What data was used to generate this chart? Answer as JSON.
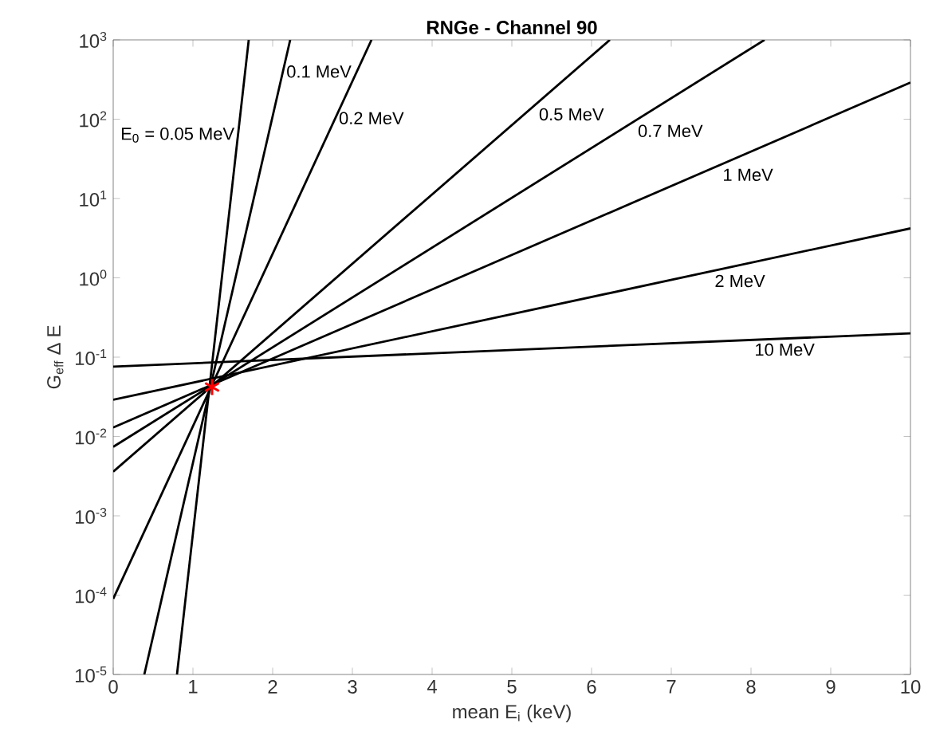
{
  "chart_data": {
    "type": "line",
    "title": "RNGe - Channel 90",
    "xlabel": "mean E$_{i}$ (keV)",
    "ylabel": "G$_{eff}$ ∆ E",
    "log": "y",
    "grid": false,
    "legend": false,
    "line_style": "solid",
    "marker": "none",
    "xlim": [
      0,
      10
    ],
    "ylim": [
      1e-05,
      1000
    ],
    "xticks": [
      0,
      1,
      2,
      3,
      4,
      5,
      6,
      7,
      8,
      9,
      10
    ],
    "yticks": [
      {
        "value": 1e-05,
        "label": "10$^{-5}$"
      },
      {
        "value": 0.0001,
        "label": "10$^{-4}$"
      },
      {
        "value": 0.001,
        "label": "10$^{-3}$"
      },
      {
        "value": 0.01,
        "label": "10$^{-2}$"
      },
      {
        "value": 0.1,
        "label": "10$^{-1}$"
      },
      {
        "value": 1,
        "label": "10$^{0}$"
      },
      {
        "value": 10,
        "label": "10$^{1}$"
      },
      {
        "value": 100,
        "label": "10$^{2}$"
      },
      {
        "value": 1000,
        "label": "10$^{3}$"
      }
    ],
    "series": [
      {
        "name": "E$_{0}$ = 0.05 MeV",
        "color": "#000000",
        "x": [
          0.8,
          1.7
        ],
        "values": [
          1e-05,
          1000
        ]
      },
      {
        "name": "0.1 MeV",
        "color": "#000000",
        "x": [
          0.39,
          2.22
        ],
        "values": [
          1e-05,
          1000
        ]
      },
      {
        "name": "0.2 MeV",
        "color": "#000000",
        "x": [
          0,
          3.24
        ],
        "values": [
          9e-05,
          1000
        ]
      },
      {
        "name": "0.5 MeV",
        "color": "#000000",
        "x": [
          0,
          6.23
        ],
        "values": [
          0.0036,
          1000
        ]
      },
      {
        "name": "0.7 MeV",
        "color": "#000000",
        "x": [
          0,
          8.17
        ],
        "values": [
          0.0074,
          1000
        ]
      },
      {
        "name": "1 MeV",
        "color": "#000000",
        "x": [
          0,
          10
        ],
        "values": [
          0.013,
          290
        ]
      },
      {
        "name": "2 MeV",
        "color": "#000000",
        "x": [
          0,
          10
        ],
        "values": [
          0.029,
          4.2
        ]
      },
      {
        "name": "10 MeV",
        "color": "#000000",
        "x": [
          0,
          10
        ],
        "values": [
          0.076,
          0.2
        ]
      },
      {
        "type": "scatter",
        "marker": "cross",
        "color": "#ff0000",
        "x": [
          1.24
        ],
        "values": [
          0.042
        ]
      }
    ]
  }
}
